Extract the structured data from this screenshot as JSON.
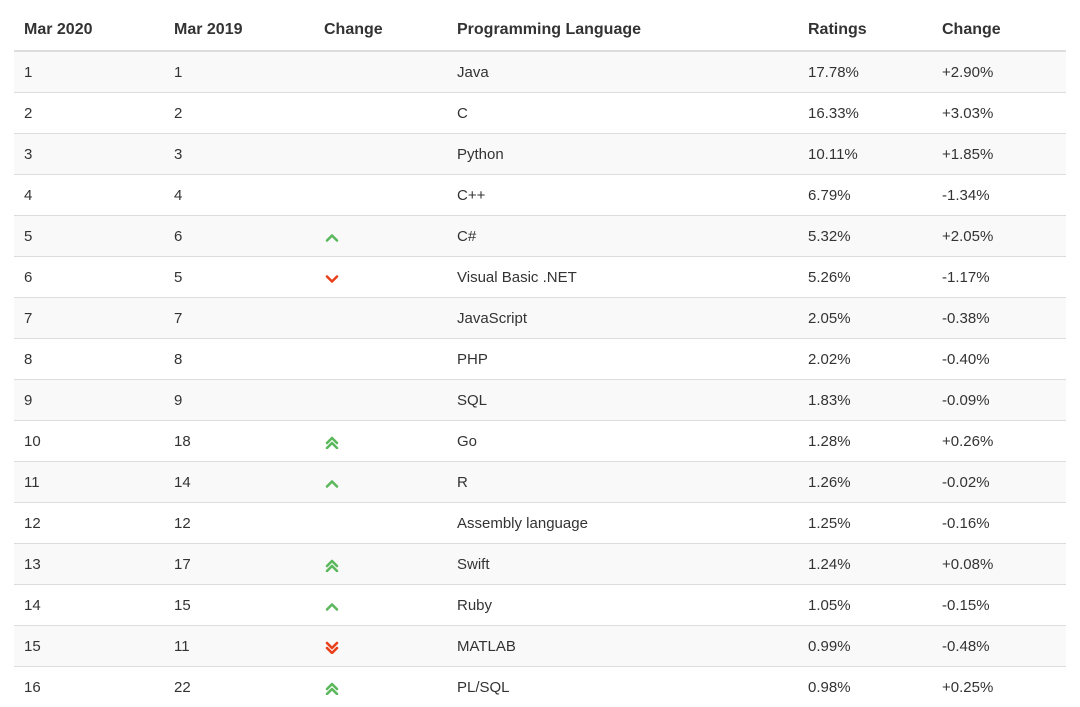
{
  "columns": [
    "Mar 2020",
    "Mar 2019",
    "Change",
    "Programming Language",
    "Ratings",
    "Change"
  ],
  "colors": {
    "up": "#5cb85c",
    "down": "#e8411b"
  },
  "rows": [
    {
      "rank2020": "1",
      "rank2019": "1",
      "trend": "none",
      "trend_icon": "",
      "language": "Java",
      "rating": "17.78%",
      "change": "+2.90%"
    },
    {
      "rank2020": "2",
      "rank2019": "2",
      "trend": "none",
      "trend_icon": "",
      "language": "C",
      "rating": "16.33%",
      "change": "+3.03%"
    },
    {
      "rank2020": "3",
      "rank2019": "3",
      "trend": "none",
      "trend_icon": "",
      "language": "Python",
      "rating": "10.11%",
      "change": "+1.85%"
    },
    {
      "rank2020": "4",
      "rank2019": "4",
      "trend": "none",
      "trend_icon": "",
      "language": "C++",
      "rating": "6.79%",
      "change": "-1.34%"
    },
    {
      "rank2020": "5",
      "rank2019": "6",
      "trend": "up",
      "trend_icon": "chevron-up-icon",
      "language": "C#",
      "rating": "5.32%",
      "change": "+2.05%"
    },
    {
      "rank2020": "6",
      "rank2019": "5",
      "trend": "down",
      "trend_icon": "chevron-down-icon",
      "language": "Visual Basic .NET",
      "rating": "5.26%",
      "change": "-1.17%"
    },
    {
      "rank2020": "7",
      "rank2019": "7",
      "trend": "none",
      "trend_icon": "",
      "language": "JavaScript",
      "rating": "2.05%",
      "change": "-0.38%"
    },
    {
      "rank2020": "8",
      "rank2019": "8",
      "trend": "none",
      "trend_icon": "",
      "language": "PHP",
      "rating": "2.02%",
      "change": "-0.40%"
    },
    {
      "rank2020": "9",
      "rank2019": "9",
      "trend": "none",
      "trend_icon": "",
      "language": "SQL",
      "rating": "1.83%",
      "change": "-0.09%"
    },
    {
      "rank2020": "10",
      "rank2019": "18",
      "trend": "up2",
      "trend_icon": "double-chevron-up-icon",
      "language": "Go",
      "rating": "1.28%",
      "change": "+0.26%"
    },
    {
      "rank2020": "11",
      "rank2019": "14",
      "trend": "up",
      "trend_icon": "chevron-up-icon",
      "language": "R",
      "rating": "1.26%",
      "change": "-0.02%"
    },
    {
      "rank2020": "12",
      "rank2019": "12",
      "trend": "none",
      "trend_icon": "",
      "language": "Assembly language",
      "rating": "1.25%",
      "change": "-0.16%"
    },
    {
      "rank2020": "13",
      "rank2019": "17",
      "trend": "up2",
      "trend_icon": "double-chevron-up-icon",
      "language": "Swift",
      "rating": "1.24%",
      "change": "+0.08%"
    },
    {
      "rank2020": "14",
      "rank2019": "15",
      "trend": "up",
      "trend_icon": "chevron-up-icon",
      "language": "Ruby",
      "rating": "1.05%",
      "change": "-0.15%"
    },
    {
      "rank2020": "15",
      "rank2019": "11",
      "trend": "down2",
      "trend_icon": "double-chevron-down-icon",
      "language": "MATLAB",
      "rating": "0.99%",
      "change": "-0.48%"
    },
    {
      "rank2020": "16",
      "rank2019": "22",
      "trend": "up2",
      "trend_icon": "double-chevron-up-icon",
      "language": "PL/SQL",
      "rating": "0.98%",
      "change": "+0.25%"
    }
  ]
}
